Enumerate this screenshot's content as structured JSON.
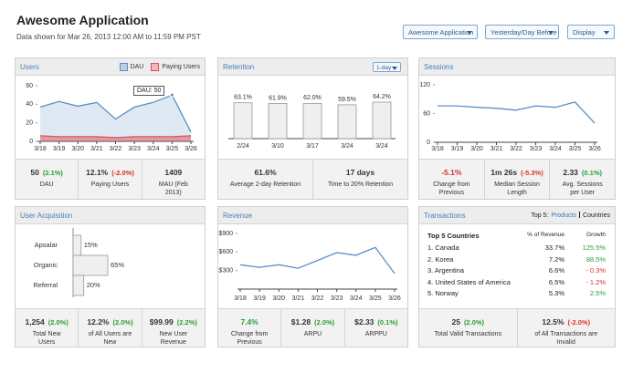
{
  "header": {
    "title": "Awesome Application",
    "subtitle": "Data shown for Mar 26, 2013 12:00 AM to 11:59 PM PST"
  },
  "controls": [
    "Awesome Application",
    "Yesterday/Day Before",
    "Display"
  ],
  "users": {
    "title": "Users",
    "tooltip": "DAU: 50",
    "chart": {
      "type": "area",
      "categories": [
        "3/18",
        "3/19",
        "3/20",
        "3/21",
        "3/22",
        "3/23",
        "3/24",
        "3/25",
        "3/26"
      ],
      "ylim": [
        0,
        60
      ],
      "yticks": [
        0,
        20,
        40,
        60
      ],
      "series": [
        {
          "name": "DAU",
          "color": "#5b8fc7",
          "values": [
            37,
            43,
            38,
            42,
            24,
            37,
            42,
            50,
            10
          ]
        },
        {
          "name": "Paying Users",
          "color": "#e0505a",
          "values": [
            6,
            5,
            5,
            5,
            4,
            5,
            5,
            5,
            6
          ]
        }
      ]
    },
    "stats": [
      {
        "value": "50",
        "change": "(2.1%)",
        "label": "DAU"
      },
      {
        "value": "12.1%",
        "change": "(-2.0%)",
        "label": "Paying Users"
      },
      {
        "value": "1409",
        "label": "MAU (Feb 2013)"
      }
    ]
  },
  "retention": {
    "title": "Retention",
    "control": "1-day",
    "chart": {
      "type": "bar",
      "categories": [
        "2/24",
        "3/10",
        "3/17",
        "3/24",
        "3/24"
      ],
      "values": [
        63.1,
        61.9,
        62.0,
        59.5,
        64.2
      ],
      "value_labels": [
        "63.1%",
        "61.9%",
        "62.0%",
        "59.5%",
        "64.2%"
      ],
      "color": "#efefef"
    },
    "stats": [
      {
        "value": "61.6%",
        "label": "Average 2-day Retention"
      },
      {
        "value": "17 days",
        "label": "Time to 20% Retention"
      }
    ]
  },
  "sessions": {
    "title": "Sessions",
    "chart": {
      "type": "line",
      "categories": [
        "3/18",
        "3/19",
        "3/20",
        "3/21",
        "3/22",
        "3/23",
        "3/24",
        "3/25",
        "3/26"
      ],
      "ylim": [
        0,
        120
      ],
      "yticks": [
        0,
        60,
        120
      ],
      "series": [
        {
          "name": "Sessions",
          "color": "#5b8fc7",
          "values": [
            76,
            76,
            73,
            71,
            67,
            76,
            73,
            84,
            40
          ]
        }
      ]
    },
    "stats": [
      {
        "value": "-5.1%",
        "color": "#d9302c",
        "label": "Change from Previous"
      },
      {
        "value": "1m 26s",
        "change": "(-5.3%)",
        "label": "Median Session Length"
      },
      {
        "value": "2.33",
        "change": "(0.1%)",
        "label": "Avg. Sessions per User"
      }
    ]
  },
  "acquisition": {
    "title": "User Acquisition",
    "chart": {
      "type": "hbar",
      "categories": [
        "Apsalar",
        "Organic",
        "Referral"
      ],
      "values": [
        15,
        65,
        20
      ],
      "value_labels": [
        "15%",
        "65%",
        "20%"
      ],
      "color": "#efefef"
    },
    "stats": [
      {
        "value": "1,254",
        "change": "(2.0%)",
        "label": "Total New Users"
      },
      {
        "value": "12.2%",
        "change": "(2.0%)",
        "label": "of All Users are New"
      },
      {
        "value": "$99.99",
        "change": "(2.2%)",
        "label": "New User Revenue"
      }
    ]
  },
  "revenue": {
    "title": "Revenue",
    "chart": {
      "type": "line",
      "categories": [
        "3/18",
        "3/19",
        "3/20",
        "3/21",
        "3/22",
        "3/23",
        "3/24",
        "3/25",
        "3/26"
      ],
      "ylim": [
        0,
        900
      ],
      "yticks": [
        {
          "value": 300,
          "label": "$300"
        },
        {
          "value": 600,
          "label": "$600"
        },
        {
          "value": 900,
          "label": "$900"
        }
      ],
      "series": [
        {
          "name": "Revenue",
          "color": "#5b8fc7",
          "values": [
            394,
            352,
            394,
            338,
            464,
            590,
            548,
            675,
            253
          ]
        }
      ]
    },
    "stats": [
      {
        "value": "7.4%",
        "color": "#2a9d3a",
        "label": "Change from Previous"
      },
      {
        "value": "$1.28",
        "change": "(2.0%)",
        "label": "ARPU"
      },
      {
        "value": "$2.33",
        "change": "(0.1%)",
        "label": "ARPPU"
      }
    ]
  },
  "transactions": {
    "title": "Transactions",
    "filter": {
      "label": "Top 5:",
      "options": [
        "Products",
        "Countries"
      ]
    },
    "table": {
      "header": [
        "Top 5 Countries",
        "% of Revenue",
        "Growth"
      ],
      "rows": [
        [
          "1. Canada",
          "33.7%",
          "125.5%"
        ],
        [
          "2. Korea",
          "7.2%",
          "88.5%"
        ],
        [
          "3. Argentina",
          "6.6%",
          "- 0.3%"
        ],
        [
          "4. United States of America",
          "6.5%",
          "- 1.2%"
        ],
        [
          "5. Norway",
          "5.3%",
          "2.5%"
        ]
      ]
    },
    "stats": [
      {
        "value": "25",
        "change": "(2.0%)",
        "label": "Total Valid Transactions"
      },
      {
        "value": "12.5%",
        "change": "(-2.0%)",
        "label": "of All Transactions are Invalid"
      }
    ]
  }
}
